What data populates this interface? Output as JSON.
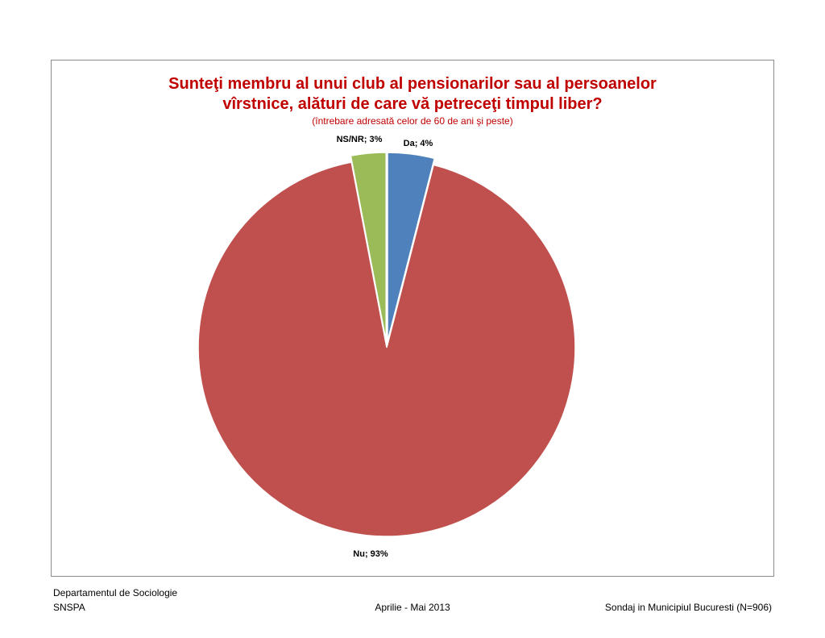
{
  "chart_data": {
    "type": "pie",
    "title_lines": [
      "Sunteţi membru al unui club al pensionarilor sau al persoanelor",
      "vîrstnice, alături de care vă petreceţi timpul liber?"
    ],
    "subtitle": "(întrebare adresată celor de 60 de ani şi peste)",
    "slices": [
      {
        "label": "Da",
        "value": 4,
        "color": "#4f81bd",
        "data_label": "Da; 4%"
      },
      {
        "label": "Nu",
        "value": 93,
        "color": "#c0504d",
        "data_label": "Nu; 93%"
      },
      {
        "label": "NS/NR",
        "value": 3,
        "color": "#9bbb59",
        "data_label": "NS/NR; 3%"
      }
    ],
    "legend": "none"
  },
  "footer": {
    "department": "Departamentul de Sociologie",
    "institution": "SNSPA",
    "period": "Aprilie - Mai 2013",
    "survey": "Sondaj in Municipiul Bucuresti (N=906)"
  }
}
